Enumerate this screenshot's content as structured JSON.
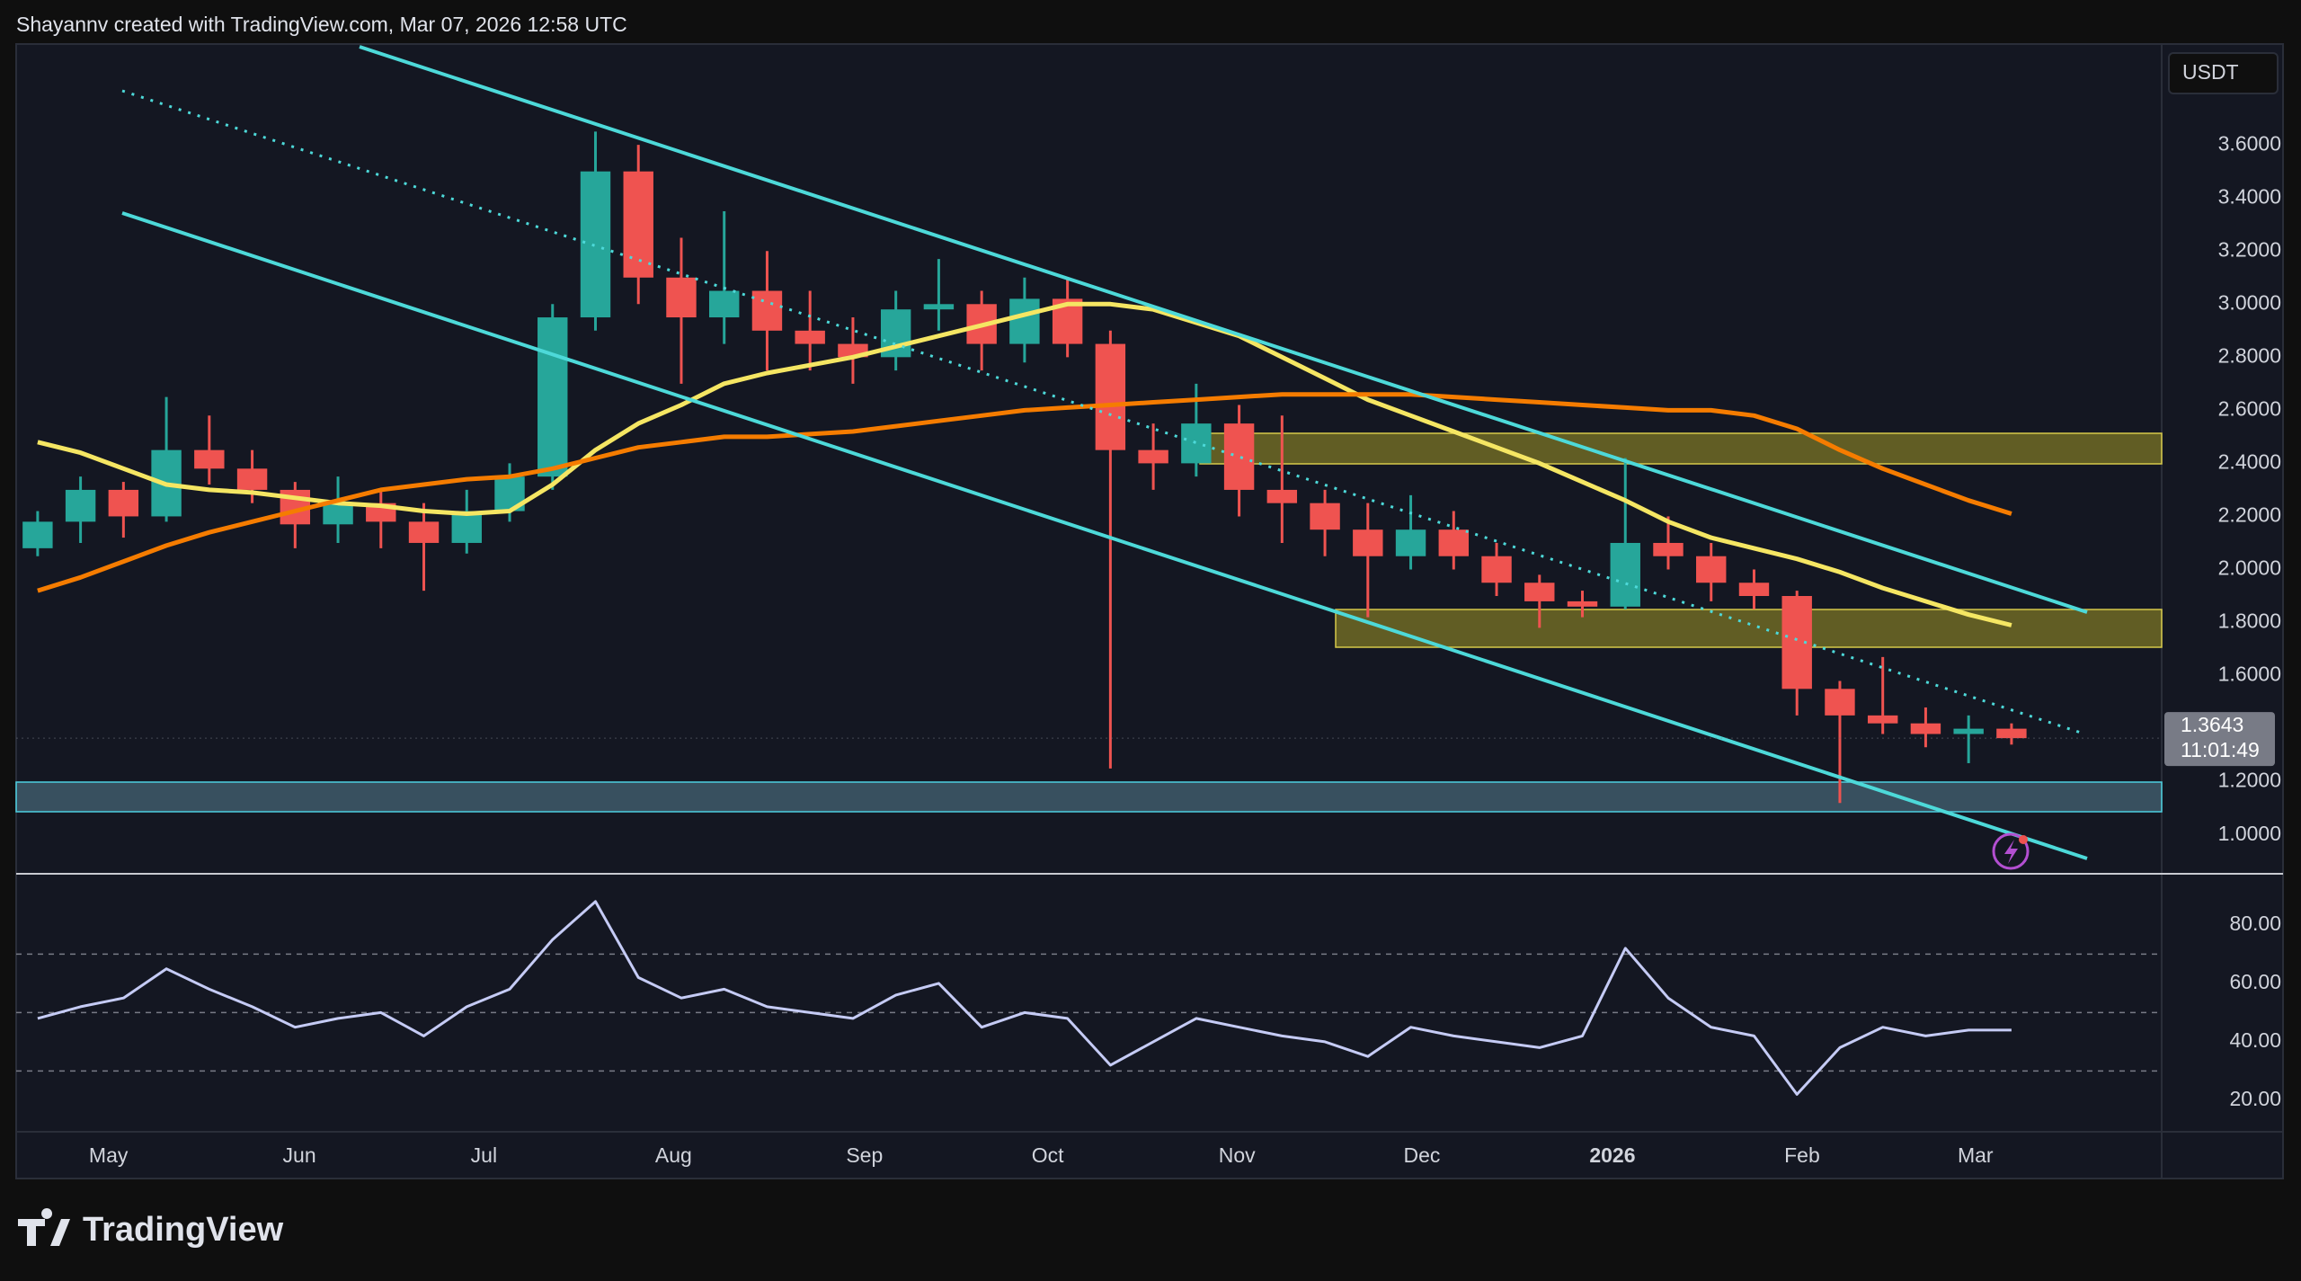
{
  "header": {
    "text": "Shayannv created with TradingView.com, Mar 07, 2026 12:58 UTC"
  },
  "footer": {
    "brand": "TradingView"
  },
  "chart_data": [
    {
      "type": "candlestick",
      "x": [
        0.5,
        1.5,
        2.5,
        3.5,
        4.5,
        5.5,
        6.5,
        7.5,
        8.5,
        9.5,
        10.5,
        11.5,
        12.5,
        13.5,
        14.5,
        15.5,
        16.5,
        17.5,
        18.5,
        19.5,
        20.5,
        21.5,
        22.5,
        23.5,
        24.5,
        25.5,
        26.5,
        27.5,
        28.5,
        29.5,
        30.5,
        31.5,
        32.5,
        33.5,
        34.5,
        35.5,
        36.5,
        37.5,
        38.5,
        39.5,
        40.5,
        41.5,
        42.5,
        43.5,
        44.5,
        45.5,
        46.5
      ],
      "open": [
        2.08,
        2.18,
        2.3,
        2.2,
        2.45,
        2.38,
        2.3,
        2.17,
        2.25,
        2.18,
        2.1,
        2.22,
        2.35,
        2.95,
        3.5,
        3.1,
        2.95,
        3.05,
        2.9,
        2.85,
        2.8,
        2.98,
        3.0,
        2.85,
        3.02,
        2.85,
        2.45,
        2.4,
        2.55,
        2.3,
        2.25,
        2.15,
        2.05,
        2.15,
        2.05,
        1.95,
        1.88,
        1.86,
        2.1,
        2.05,
        1.95,
        1.9,
        1.55,
        1.45,
        1.42,
        1.38,
        1.4
      ],
      "high": [
        2.22,
        2.35,
        2.33,
        2.65,
        2.58,
        2.45,
        2.33,
        2.35,
        2.3,
        2.25,
        2.3,
        2.4,
        3.0,
        3.65,
        3.6,
        3.25,
        3.35,
        3.2,
        3.05,
        2.95,
        3.05,
        3.17,
        3.05,
        3.1,
        3.1,
        2.9,
        2.55,
        2.7,
        2.62,
        2.58,
        2.3,
        2.25,
        2.28,
        2.22,
        2.1,
        1.98,
        1.92,
        2.42,
        2.2,
        2.1,
        2.0,
        1.92,
        1.58,
        1.67,
        1.48,
        1.45,
        1.42
      ],
      "low": [
        2.05,
        2.1,
        2.12,
        2.18,
        2.32,
        2.25,
        2.08,
        2.1,
        2.08,
        1.92,
        2.06,
        2.18,
        2.3,
        2.9,
        3.0,
        2.7,
        2.85,
        2.75,
        2.75,
        2.7,
        2.75,
        2.9,
        2.75,
        2.78,
        2.8,
        1.25,
        2.3,
        2.35,
        2.2,
        2.1,
        2.05,
        1.82,
        2.0,
        2.0,
        1.9,
        1.78,
        1.82,
        1.85,
        2.0,
        1.88,
        1.85,
        1.45,
        1.12,
        1.38,
        1.33,
        1.27,
        1.34
      ],
      "close": [
        2.18,
        2.3,
        2.2,
        2.45,
        2.38,
        2.3,
        2.17,
        2.25,
        2.18,
        2.1,
        2.22,
        2.35,
        2.95,
        3.5,
        3.1,
        2.95,
        3.05,
        2.9,
        2.85,
        2.8,
        2.98,
        3.0,
        2.85,
        3.02,
        2.85,
        2.45,
        2.4,
        2.55,
        2.3,
        2.25,
        2.15,
        2.05,
        2.15,
        2.05,
        1.95,
        1.88,
        1.86,
        2.1,
        2.05,
        1.95,
        1.9,
        1.55,
        1.45,
        1.42,
        1.38,
        1.4,
        1.3643
      ],
      "up_color": "#26a69a",
      "down_color": "#ef5350",
      "series": [
        {
          "color": "#f5e663",
          "values": [
            2.48,
            2.44,
            2.38,
            2.32,
            2.3,
            2.29,
            2.27,
            2.25,
            2.24,
            2.22,
            2.21,
            2.22,
            2.32,
            2.45,
            2.55,
            2.62,
            2.7,
            2.74,
            2.77,
            2.8,
            2.84,
            2.88,
            2.92,
            2.96,
            3.0,
            3.0,
            2.98,
            2.93,
            2.88,
            2.8,
            2.72,
            2.64,
            2.58,
            2.52,
            2.46,
            2.4,
            2.33,
            2.26,
            2.18,
            2.12,
            2.08,
            2.04,
            1.99,
            1.93,
            1.88,
            1.83,
            1.79
          ]
        },
        {
          "color": "#f57c00",
          "values": [
            1.92,
            1.97,
            2.03,
            2.09,
            2.14,
            2.18,
            2.22,
            2.26,
            2.3,
            2.32,
            2.34,
            2.35,
            2.38,
            2.42,
            2.46,
            2.48,
            2.5,
            2.5,
            2.51,
            2.52,
            2.54,
            2.56,
            2.58,
            2.6,
            2.61,
            2.62,
            2.63,
            2.64,
            2.65,
            2.66,
            2.66,
            2.66,
            2.66,
            2.65,
            2.64,
            2.63,
            2.62,
            2.61,
            2.6,
            2.6,
            2.58,
            2.53,
            2.45,
            2.38,
            2.32,
            2.26,
            2.21
          ]
        }
      ],
      "xlim": [
        0,
        50
      ],
      "ylim": [
        0.86,
        3.98
      ],
      "yticks": [
        {
          "value": 1.0,
          "label": "1.0000"
        },
        {
          "value": 1.2,
          "label": "1.2000"
        },
        {
          "value": 1.6,
          "label": "1.6000"
        },
        {
          "value": 1.8,
          "label": "1.8000"
        },
        {
          "value": 2.0,
          "label": "2.0000"
        },
        {
          "value": 2.2,
          "label": "2.2000"
        },
        {
          "value": 2.4,
          "label": "2.4000"
        },
        {
          "value": 2.6,
          "label": "2.6000"
        },
        {
          "value": 2.8,
          "label": "2.8000"
        },
        {
          "value": 3.0,
          "label": "3.0000"
        },
        {
          "value": 3.2,
          "label": "3.2000"
        },
        {
          "value": 3.4,
          "label": "3.4000"
        },
        {
          "value": 3.6,
          "label": "3.6000"
        }
      ],
      "currency": "USDT",
      "last_price": 1.3643,
      "countdown": "11:01:49"
    },
    {
      "type": "line",
      "x": [
        0.5,
        1.5,
        2.5,
        3.5,
        4.5,
        5.5,
        6.5,
        7.5,
        8.5,
        9.5,
        10.5,
        11.5,
        12.5,
        13.5,
        14.5,
        15.5,
        16.5,
        17.5,
        18.5,
        19.5,
        20.5,
        21.5,
        22.5,
        23.5,
        24.5,
        25.5,
        26.5,
        27.5,
        28.5,
        29.5,
        30.5,
        31.5,
        32.5,
        33.5,
        34.5,
        35.5,
        36.5,
        37.5,
        38.5,
        39.5,
        40.5,
        41.5,
        42.5,
        43.5,
        44.5,
        45.5,
        46.5
      ],
      "values": [
        48,
        52,
        55,
        65,
        58,
        52,
        45,
        48,
        50,
        42,
        52,
        58,
        75,
        88,
        62,
        55,
        58,
        52,
        50,
        48,
        56,
        60,
        45,
        50,
        48,
        32,
        40,
        48,
        45,
        42,
        40,
        35,
        45,
        42,
        40,
        38,
        42,
        72,
        55,
        45,
        42,
        22,
        38,
        45,
        42,
        44,
        44
      ],
      "color": "#c5cbf5",
      "xlim": [
        0,
        50
      ],
      "ylim": [
        9.2,
        97.2
      ],
      "yticks": [
        {
          "value": 20,
          "label": "20.00"
        },
        {
          "value": 40,
          "label": "40.00"
        },
        {
          "value": 60,
          "label": "60.00"
        },
        {
          "value": 80,
          "label": "80.00"
        }
      ],
      "levels": [
        30,
        50,
        70
      ],
      "xticks": [
        {
          "value": 2.15,
          "label": "May"
        },
        {
          "value": 6.6,
          "label": "Jun"
        },
        {
          "value": 10.9,
          "label": "Jul"
        },
        {
          "value": 15.32,
          "label": "Aug"
        },
        {
          "value": 19.77,
          "label": "Sep"
        },
        {
          "value": 24.04,
          "label": "Oct"
        },
        {
          "value": 28.45,
          "label": "Nov"
        },
        {
          "value": 32.76,
          "label": "Dec"
        },
        {
          "value": 37.2,
          "label": "2026"
        },
        {
          "value": 41.62,
          "label": "Feb"
        },
        {
          "value": 45.66,
          "label": "Mar"
        }
      ]
    }
  ]
}
